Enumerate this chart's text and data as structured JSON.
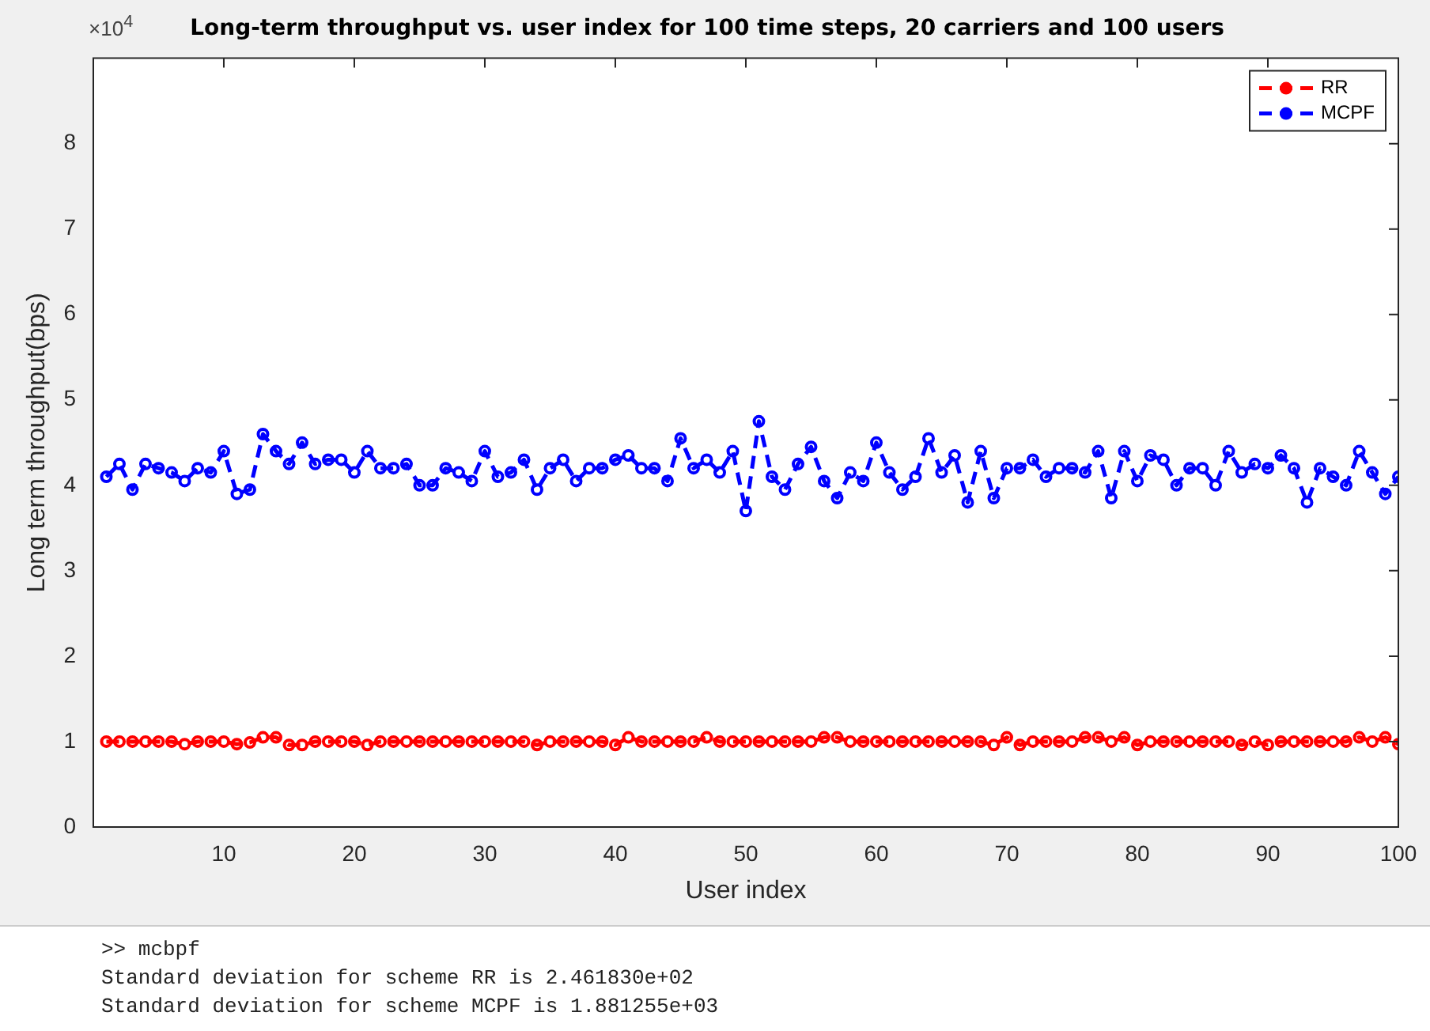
{
  "chart_data": {
    "type": "line",
    "title": "Long-term throughput vs. user index for 100 time steps, 20 carriers and 100 users",
    "xlabel": "User index",
    "ylabel": "Long term throughput(bps)",
    "x": [
      1,
      2,
      3,
      4,
      5,
      6,
      7,
      8,
      9,
      10,
      11,
      12,
      13,
      14,
      15,
      16,
      17,
      18,
      19,
      20,
      21,
      22,
      23,
      24,
      25,
      26,
      27,
      28,
      29,
      30,
      31,
      32,
      33,
      34,
      35,
      36,
      37,
      38,
      39,
      40,
      41,
      42,
      43,
      44,
      45,
      46,
      47,
      48,
      49,
      50,
      51,
      52,
      53,
      54,
      55,
      56,
      57,
      58,
      59,
      60,
      61,
      62,
      63,
      64,
      65,
      66,
      67,
      68,
      69,
      70,
      71,
      72,
      73,
      74,
      75,
      76,
      77,
      78,
      79,
      80,
      81,
      82,
      83,
      84,
      85,
      86,
      87,
      88,
      89,
      90,
      91,
      92,
      93,
      94,
      95,
      96,
      97,
      98,
      99,
      100
    ],
    "series": [
      {
        "name": "RR",
        "color": "#ff0000",
        "values": [
          1.0,
          1.0,
          1.0,
          1.0,
          1.0,
          1.0,
          0.97,
          1.0,
          1.0,
          1.0,
          0.97,
          0.99,
          1.05,
          1.05,
          0.96,
          0.96,
          1.0,
          1.0,
          1.0,
          1.0,
          0.96,
          1.0,
          1.0,
          1.0,
          1.0,
          1.0,
          1.0,
          1.0,
          1.0,
          1.0,
          1.0,
          1.0,
          1.0,
          0.96,
          1.0,
          1.0,
          1.0,
          1.0,
          1.0,
          0.96,
          1.05,
          1.0,
          1.0,
          1.0,
          1.0,
          1.0,
          1.05,
          1.0,
          1.0,
          1.0,
          1.0,
          1.0,
          1.0,
          1.0,
          1.0,
          1.05,
          1.05,
          1.0,
          1.0,
          1.0,
          1.0,
          1.0,
          1.0,
          1.0,
          1.0,
          1.0,
          1.0,
          1.0,
          0.96,
          1.05,
          0.96,
          1.0,
          1.0,
          1.0,
          1.0,
          1.05,
          1.05,
          1.0,
          1.05,
          0.96,
          1.0,
          1.0,
          1.0,
          1.0,
          1.0,
          1.0,
          1.0,
          0.96,
          1.0,
          0.96,
          1.0,
          1.0,
          1.0,
          1.0,
          1.0,
          1.0,
          1.05,
          1.0,
          1.05,
          0.97
        ]
      },
      {
        "name": "MCPF",
        "color": "#0000ff",
        "values": [
          4.1,
          4.25,
          3.95,
          4.25,
          4.2,
          4.15,
          4.05,
          4.2,
          4.15,
          4.4,
          3.9,
          3.95,
          4.6,
          4.4,
          4.25,
          4.5,
          4.25,
          4.3,
          4.3,
          4.15,
          4.4,
          4.2,
          4.2,
          4.25,
          4.0,
          4.0,
          4.2,
          4.15,
          4.05,
          4.4,
          4.1,
          4.15,
          4.3,
          3.95,
          4.2,
          4.3,
          4.05,
          4.2,
          4.2,
          4.3,
          4.35,
          4.2,
          4.2,
          4.05,
          4.55,
          4.2,
          4.3,
          4.15,
          4.4,
          3.7,
          4.75,
          4.1,
          3.95,
          4.25,
          4.45,
          4.05,
          3.85,
          4.15,
          4.05,
          4.5,
          4.15,
          3.95,
          4.1,
          4.55,
          4.15,
          4.35,
          3.8,
          4.4,
          3.85,
          4.2,
          4.2,
          4.3,
          4.1,
          4.2,
          4.2,
          4.15,
          4.4,
          3.85,
          4.4,
          4.05,
          4.35,
          4.3,
          4.0,
          4.2,
          4.2,
          4.0,
          4.4,
          4.15,
          4.25,
          4.2,
          4.35,
          4.2,
          3.8,
          4.2,
          4.1,
          4.0,
          4.4,
          4.15,
          3.9,
          4.1
        ]
      }
    ],
    "xlim": [
      0,
      100
    ],
    "xticks": [
      10,
      20,
      30,
      40,
      50,
      60,
      70,
      80,
      90,
      100
    ],
    "ylim": [
      0,
      9
    ],
    "yticks": [
      0,
      1,
      2,
      3,
      4,
      5,
      6,
      7,
      8
    ],
    "grid": false,
    "legend": "top right",
    "marker": "circle",
    "line_style": "dashed",
    "annotations": [
      "×10$^{4}$",
      ">> mcbpf",
      "Standard deviation for scheme RR is 2.461830e+02",
      "Standard deviation for scheme MCPF is 1.881255e+03"
    ]
  }
}
